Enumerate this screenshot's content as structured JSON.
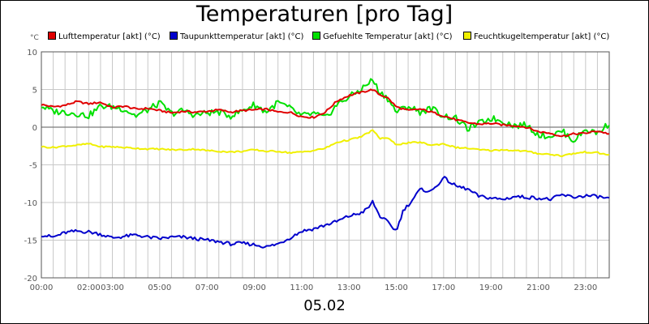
{
  "chart_data": {
    "type": "line",
    "title": "Temperaturen [pro Tag]",
    "ylabel": "°C",
    "xlabel": "05.02",
    "xlim": [
      0,
      24
    ],
    "ylim": [
      -20,
      10
    ],
    "y_ticks": [
      "10",
      "5",
      "0",
      "-5",
      "-10",
      "-15",
      "-20"
    ],
    "y_tick_values": [
      10,
      5,
      0,
      -5,
      -10,
      -15,
      -20
    ],
    "x_ticks": [
      "00:00",
      "02:00",
      "03:00",
      "05:00",
      "07:00",
      "09:00",
      "11:00",
      "13:00",
      "15:00",
      "17:00",
      "19:00",
      "21:00",
      "23:00"
    ],
    "x_tick_values": [
      0,
      2,
      3,
      5,
      7,
      9,
      11,
      13,
      15,
      17,
      19,
      21,
      23
    ],
    "grid": true,
    "legend_position": "top",
    "series": [
      {
        "name": "Lufttemperatur [akt] (°C)",
        "color": "#e00000",
        "x": [
          0,
          0.5,
          1,
          1.5,
          2,
          2.5,
          3,
          3.5,
          4,
          4.5,
          5,
          5.5,
          6,
          6.5,
          7,
          7.5,
          8,
          8.5,
          9,
          9.5,
          10,
          10.5,
          11,
          11.5,
          12,
          12.5,
          13,
          13.5,
          14,
          14.3,
          14.6,
          15,
          15.5,
          16,
          16.5,
          17,
          17.5,
          18,
          18.5,
          19,
          19.5,
          20,
          20.5,
          21,
          21.5,
          22,
          22.5,
          23,
          23.5,
          24
        ],
        "values": [
          3,
          2.7,
          2.9,
          3.4,
          3.1,
          3.3,
          2.6,
          2.8,
          2.4,
          2.5,
          2.2,
          1.9,
          2.1,
          2.0,
          2.1,
          2.3,
          2.0,
          2.2,
          2.3,
          2.4,
          2.0,
          2.0,
          1.4,
          1.3,
          2.0,
          3.5,
          4.2,
          4.6,
          5.0,
          4.3,
          4.0,
          2.7,
          2.2,
          2.4,
          2.0,
          1.5,
          1.0,
          0.6,
          0.4,
          0.5,
          0.3,
          0.2,
          0.0,
          -0.6,
          -0.8,
          -1.2,
          -0.9,
          -0.8,
          -0.5,
          -0.9
        ]
      },
      {
        "name": "Taupunkttemperatur [akt] (°C)",
        "color": "#0000cc",
        "x": [
          0,
          0.5,
          1,
          1.5,
          2,
          2.5,
          3,
          3.5,
          4,
          4.5,
          5,
          5.5,
          6,
          6.5,
          7,
          7.5,
          8,
          8.5,
          9,
          9.5,
          10,
          10.5,
          11,
          11.5,
          12,
          12.5,
          13,
          13.5,
          13.8,
          14,
          14.3,
          14.6,
          15,
          15.3,
          15.6,
          16,
          16.5,
          17,
          17.5,
          18,
          18.5,
          19,
          19.5,
          20,
          20.5,
          21,
          21.5,
          22,
          22.5,
          23,
          23.5,
          24
        ],
        "values": [
          -14.3,
          -14.6,
          -14.0,
          -13.8,
          -13.9,
          -14.2,
          -14.7,
          -14.5,
          -14.3,
          -14.6,
          -14.8,
          -14.6,
          -14.6,
          -14.8,
          -15.0,
          -15.2,
          -15.5,
          -15.4,
          -15.6,
          -15.9,
          -15.5,
          -14.7,
          -13.8,
          -13.5,
          -13.0,
          -12.5,
          -11.8,
          -11.4,
          -10.8,
          -9.9,
          -11.8,
          -12.5,
          -13.8,
          -11.0,
          -10.0,
          -8.3,
          -8.5,
          -6.7,
          -7.8,
          -8.2,
          -9.2,
          -9.4,
          -9.6,
          -9.2,
          -9.3,
          -9.4,
          -9.6,
          -9.0,
          -9.3,
          -9.1,
          -9.2,
          -9.5
        ]
      },
      {
        "name": "Gefuehlte Temperatur [akt] (°C)",
        "color": "#00e000",
        "x": [
          0,
          0.5,
          1,
          1.5,
          2,
          2.5,
          3,
          3.5,
          4,
          4.5,
          5,
          5.5,
          6,
          6.5,
          7,
          7.5,
          8,
          8.5,
          9,
          9.5,
          10,
          10.5,
          11,
          11.5,
          12,
          12.5,
          13,
          13.5,
          14,
          14.3,
          14.6,
          15,
          15.5,
          16,
          16.5,
          17,
          17.5,
          18,
          18.5,
          19,
          19.5,
          20,
          20.5,
          21,
          21.5,
          22,
          22.5,
          23,
          23.5,
          24
        ],
        "values": [
          2.8,
          2.1,
          2.0,
          1.8,
          1.5,
          2.8,
          2.7,
          2.4,
          1.5,
          2.3,
          3.2,
          1.8,
          2.2,
          1.6,
          1.9,
          2.0,
          1.5,
          2.2,
          3.0,
          2.0,
          3.3,
          2.5,
          1.5,
          1.8,
          1.2,
          3.0,
          4.0,
          5.0,
          6.3,
          4.6,
          4.0,
          2.0,
          2.8,
          2.0,
          2.5,
          1.5,
          1.2,
          -0.2,
          0.5,
          1.2,
          0.8,
          0.2,
          0.3,
          -1.0,
          -1.2,
          -0.5,
          -1.8,
          -0.3,
          -0.8,
          0.5
        ]
      },
      {
        "name": "Feuchtkugeltemperatur [akt] (°C)",
        "color": "#f0f000",
        "x": [
          0,
          0.5,
          1,
          1.5,
          2,
          2.5,
          3,
          3.5,
          4,
          4.5,
          5,
          5.5,
          6,
          6.5,
          7,
          7.5,
          8,
          8.5,
          9,
          9.5,
          10,
          10.5,
          11,
          11.5,
          12,
          12.5,
          13,
          13.5,
          14,
          14.3,
          14.6,
          15,
          15.5,
          16,
          16.5,
          17,
          17.5,
          18,
          18.5,
          19,
          19.5,
          20,
          20.5,
          21,
          21.5,
          22,
          22.5,
          23,
          23.5,
          24
        ],
        "values": [
          -2.6,
          -2.7,
          -2.5,
          -2.4,
          -2.2,
          -2.6,
          -2.6,
          -2.7,
          -2.8,
          -2.9,
          -2.9,
          -3.0,
          -3.0,
          -2.9,
          -3.1,
          -3.2,
          -3.3,
          -3.2,
          -3.0,
          -3.2,
          -3.2,
          -3.4,
          -3.3,
          -3.1,
          -2.8,
          -2.0,
          -1.7,
          -1.3,
          -0.4,
          -1.5,
          -1.4,
          -2.3,
          -2.1,
          -2.0,
          -2.4,
          -2.2,
          -2.7,
          -2.8,
          -3.0,
          -3.1,
          -3.0,
          -3.1,
          -3.2,
          -3.5,
          -3.6,
          -3.8,
          -3.5,
          -3.3,
          -3.4,
          -3.7
        ]
      }
    ]
  }
}
